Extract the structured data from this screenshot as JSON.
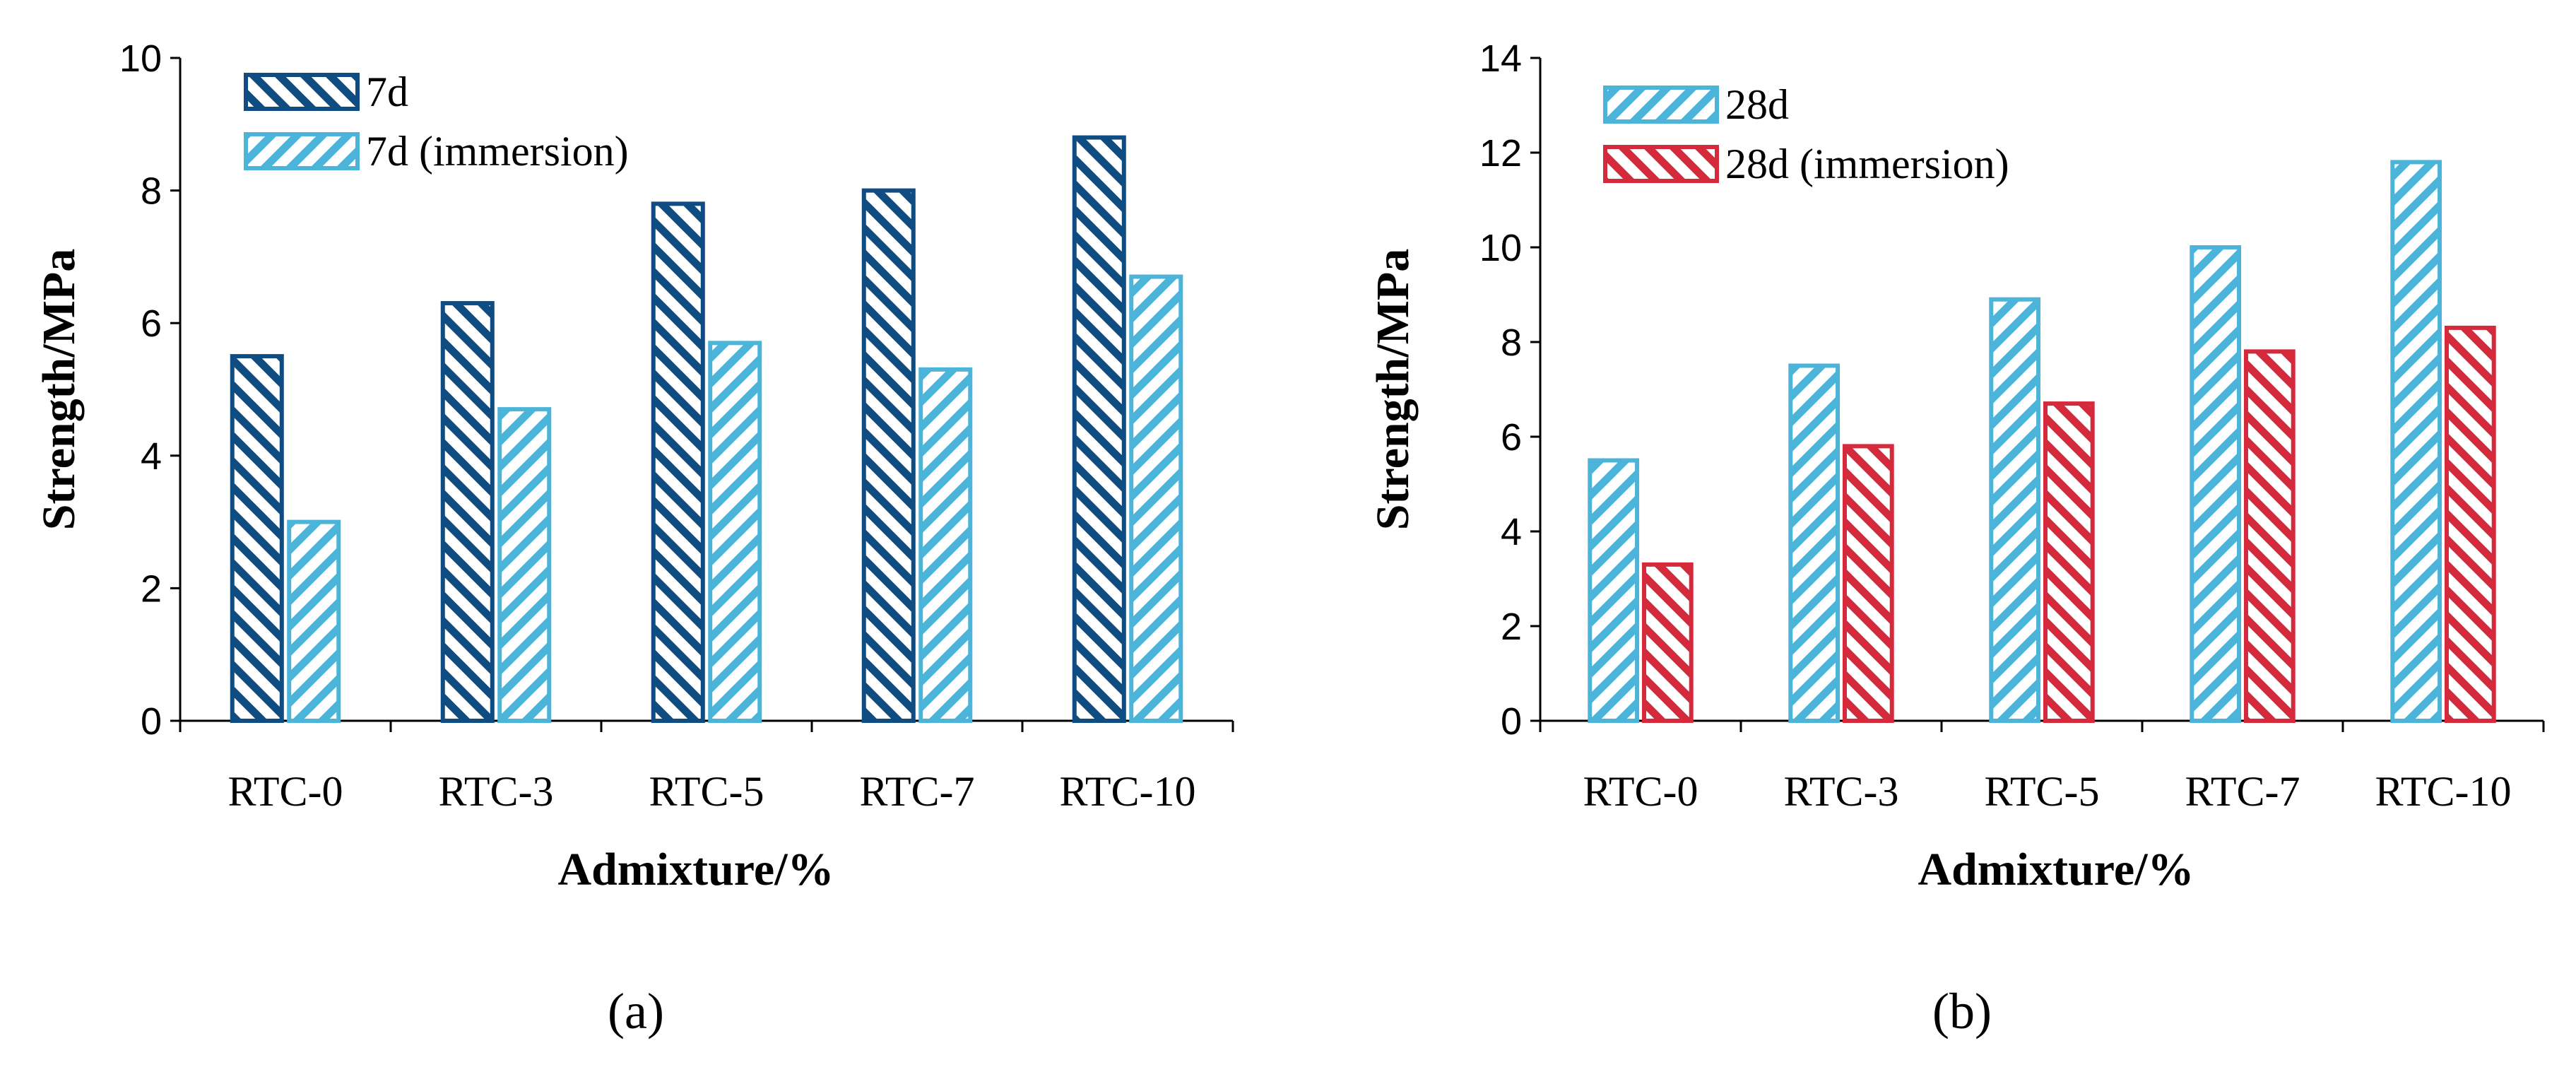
{
  "chart_data": [
    {
      "type": "bar",
      "panel_label": "(a)",
      "xlabel": "Admixture/%",
      "ylabel": "Strength/MPa",
      "ylim": [
        0,
        10
      ],
      "yticks": [
        0,
        2,
        4,
        6,
        8,
        10
      ],
      "categories": [
        "RTC-0",
        "RTC-3",
        "RTC-5",
        "RTC-7",
        "RTC-10"
      ],
      "legend_position": "top-left",
      "grid": false,
      "series": [
        {
          "name": "7d",
          "color": "#0f4c81",
          "hatch": "backslash",
          "values": [
            5.5,
            6.3,
            7.8,
            8.0,
            8.8
          ]
        },
        {
          "name": "7d (immersion)",
          "color": "#4bb4d8",
          "hatch": "slash",
          "values": [
            3.0,
            4.7,
            5.7,
            5.3,
            6.7
          ]
        }
      ]
    },
    {
      "type": "bar",
      "panel_label": "(b)",
      "xlabel": "Admixture/%",
      "ylabel": "Strength/MPa",
      "ylim": [
        0,
        14
      ],
      "yticks": [
        0,
        2,
        4,
        6,
        8,
        10,
        12,
        14
      ],
      "categories": [
        "RTC-0",
        "RTC-3",
        "RTC-5",
        "RTC-7",
        "RTC-10"
      ],
      "legend_position": "top-left",
      "grid": false,
      "series": [
        {
          "name": "28d",
          "color": "#4bb4d8",
          "hatch": "slash",
          "values": [
            5.5,
            7.5,
            8.9,
            10.0,
            11.8
          ]
        },
        {
          "name": "28d (immersion)",
          "color": "#d42a3c",
          "hatch": "backslash",
          "values": [
            3.3,
            5.8,
            6.7,
            7.8,
            8.3
          ]
        }
      ]
    }
  ]
}
